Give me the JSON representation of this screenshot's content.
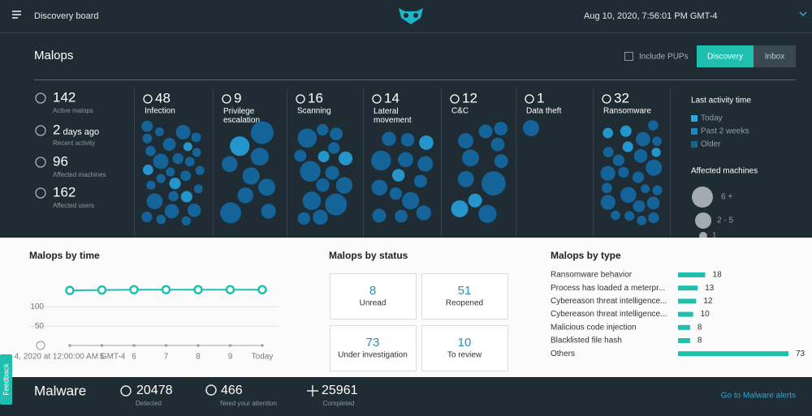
{
  "header": {
    "title": "Discovery board",
    "datetime": "Aug 10, 2020, 7:56:01 PM GMT-4"
  },
  "malops": {
    "title": "Malops",
    "include_pups": "Include PUPs",
    "tabs": [
      "Discovery",
      "Inbox"
    ],
    "stats": [
      {
        "value": 142,
        "label": "Active malops"
      },
      {
        "value": 2,
        "unit": "days ago",
        "label": "Recent activity"
      },
      {
        "value": 96,
        "label": "Affected machines"
      },
      {
        "value": 162,
        "label": "Affected users"
      }
    ],
    "categories": [
      {
        "name": "Infection",
        "count": 48
      },
      {
        "name": "Privilege escalation",
        "count": 9
      },
      {
        "name": "Scanning",
        "count": 16
      },
      {
        "name": "Lateral movement",
        "count": 14
      },
      {
        "name": "C&C",
        "count": 12
      },
      {
        "name": "Data theft",
        "count": 1
      },
      {
        "name": "Ransomware",
        "count": 32
      }
    ],
    "legend": {
      "activity_title": "Last activity time",
      "activity": [
        "Today",
        "Past 2 weeks",
        "Older"
      ],
      "machines_title": "Affected machines",
      "machines": [
        "6 +",
        "2 - 5",
        "1"
      ]
    }
  },
  "by_time": {
    "title": "Malops by time",
    "type": "line",
    "categories": [
      "4, 2020 at 12:00:00 AM GMT-4",
      "5",
      "6",
      "7",
      "8",
      "9",
      "Today"
    ],
    "series": [
      {
        "color": "#1fbfb0",
        "values": [
          142,
          143,
          144,
          144,
          144,
          144,
          144
        ]
      },
      {
        "color": "#9aa5ab",
        "values": [
          0,
          0,
          0,
          0,
          0,
          0,
          0
        ]
      }
    ],
    "ylim": [
      0,
      180
    ],
    "yticks": [
      50,
      100
    ],
    "grid": true
  },
  "by_status": {
    "title": "Malops by status",
    "items": [
      {
        "value": 8,
        "label": "Unread"
      },
      {
        "value": 51,
        "label": "Reopened"
      },
      {
        "value": 73,
        "label": "Under investigation"
      },
      {
        "value": 10,
        "label": "To review"
      }
    ]
  },
  "by_type": {
    "title": "Malops by type",
    "type": "bar",
    "categories": [
      "Ransomware behavior",
      "Process has loaded a meterpr...",
      "Cybereason threat intelligence...",
      "Cybereason threat intelligence...",
      "Malicious code injection",
      "Blacklisted file hash",
      "Others"
    ],
    "values": [
      18,
      13,
      12,
      10,
      8,
      8,
      73
    ],
    "color": "#1fbfb0"
  },
  "malware": {
    "title": "Malware",
    "stats": [
      {
        "value": 20478,
        "label": "Detected"
      },
      {
        "value": 466,
        "label": "Need your attention"
      },
      {
        "value": 25961,
        "label": "Completed"
      }
    ],
    "link": "Go to Malware alerts"
  },
  "feedback": "Feedback"
}
